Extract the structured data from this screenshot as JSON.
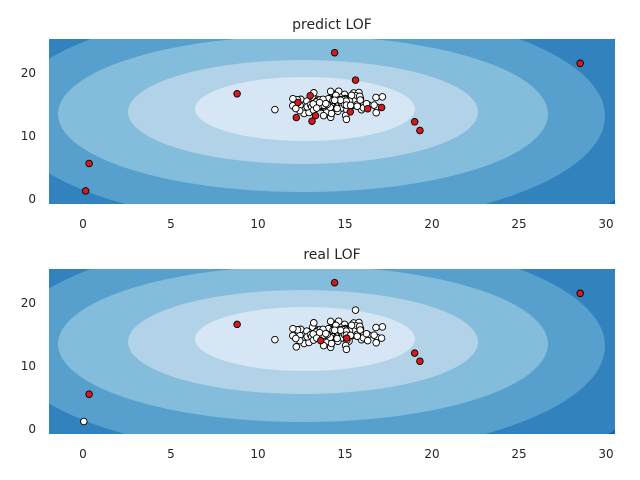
{
  "chart_data": [
    {
      "type": "scatter",
      "title": "predict LOF",
      "xlim": [
        -2,
        30.5
      ],
      "ylim": [
        -1,
        25.5
      ],
      "xticks": [
        "0",
        "5",
        "10",
        "15",
        "20",
        "25",
        "30"
      ],
      "yticks": [
        "0",
        "10",
        "20"
      ],
      "grid": false,
      "colors": {
        "inlier": "#ffffff",
        "outlier": "#d7191c",
        "edge": "#000000",
        "contour_levels": [
          "#d6e6f4",
          "#b2d2e8",
          "#84bcdb",
          "#57a0ce",
          "#3282be",
          "#1764ab"
        ]
      },
      "outliers": [
        {
          "x": 14.4,
          "y": 23.3
        },
        {
          "x": 28.5,
          "y": 21.6
        },
        {
          "x": 15.6,
          "y": 18.9
        },
        {
          "x": 8.8,
          "y": 16.7
        },
        {
          "x": 13.0,
          "y": 16.4
        },
        {
          "x": 12.3,
          "y": 15.3
        },
        {
          "x": 13.3,
          "y": 13.2
        },
        {
          "x": 12.2,
          "y": 12.9
        },
        {
          "x": 13.1,
          "y": 12.3
        },
        {
          "x": 16.3,
          "y": 14.3
        },
        {
          "x": 17.1,
          "y": 14.5
        },
        {
          "x": 15.3,
          "y": 13.8
        },
        {
          "x": 19.0,
          "y": 12.2
        },
        {
          "x": 19.3,
          "y": 10.8
        },
        {
          "x": 0.3,
          "y": 5.5
        },
        {
          "x": 0.1,
          "y": 1.1
        }
      ],
      "inliers_cluster": {
        "center": [
          14.3,
          15.1
        ],
        "spread": [
          1.1,
          0.9
        ],
        "count": 130
      }
    },
    {
      "type": "scatter",
      "title": "real LOF",
      "xlim": [
        -2,
        30.5
      ],
      "ylim": [
        -1,
        25.5
      ],
      "xticks": [
        "0",
        "5",
        "10",
        "15",
        "20",
        "25",
        "30"
      ],
      "yticks": [
        "0",
        "10",
        "20"
      ],
      "grid": false,
      "colors": {
        "inlier": "#ffffff",
        "outlier": "#d7191c",
        "edge": "#000000",
        "contour_levels": [
          "#d6e6f4",
          "#b2d2e8",
          "#84bcdb",
          "#57a0ce",
          "#3282be",
          "#1764ab"
        ]
      },
      "outliers": [
        {
          "x": 14.4,
          "y": 23.3
        },
        {
          "x": 28.5,
          "y": 21.6
        },
        {
          "x": 8.8,
          "y": 16.6
        },
        {
          "x": 13.6,
          "y": 14.0
        },
        {
          "x": 15.1,
          "y": 14.4
        },
        {
          "x": 19.0,
          "y": 12.0
        },
        {
          "x": 19.3,
          "y": 10.7
        },
        {
          "x": 0.3,
          "y": 5.4
        }
      ],
      "extra_inliers": [
        {
          "x": 15.6,
          "y": 18.9
        },
        {
          "x": 17.1,
          "y": 14.4
        },
        {
          "x": 0.0,
          "y": 1.0
        },
        {
          "x": 16.3,
          "y": 14.0
        },
        {
          "x": 12.2,
          "y": 13.0
        }
      ],
      "inliers_cluster": {
        "center": [
          14.3,
          15.1
        ],
        "spread": [
          1.1,
          0.9
        ],
        "count": 130
      }
    }
  ]
}
